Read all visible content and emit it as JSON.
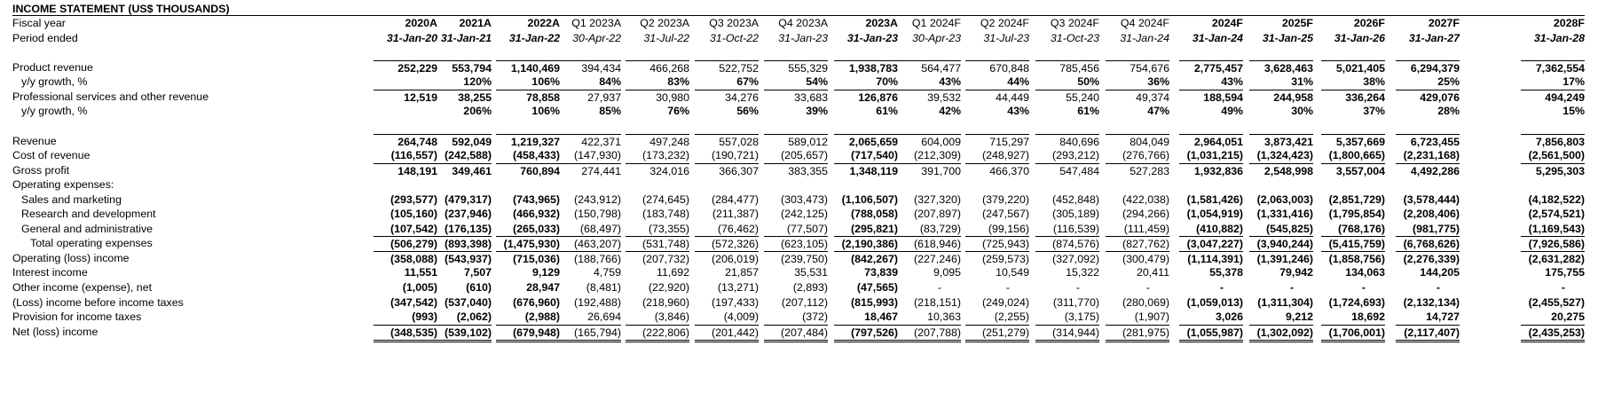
{
  "title": "INCOME STATEMENT (US$ THOUSANDS)",
  "columns": [
    {
      "year": "2020A",
      "period": "31-Jan-20",
      "annual": true
    },
    {
      "year": "2021A",
      "period": "31-Jan-21",
      "annual": true
    },
    {
      "year": "2022A",
      "period": "31-Jan-22",
      "annual": true
    },
    {
      "year": "Q1 2023A",
      "period": "30-Apr-22",
      "annual": false
    },
    {
      "year": "Q2 2023A",
      "period": "31-Jul-22",
      "annual": false
    },
    {
      "year": "Q3 2023A",
      "period": "31-Oct-22",
      "annual": false
    },
    {
      "year": "Q4 2023A",
      "period": "31-Jan-23",
      "annual": false
    },
    {
      "year": "2023A",
      "period": "31-Jan-23",
      "annual": true
    },
    {
      "year": "Q1 2024F",
      "period": "30-Apr-23",
      "annual": false
    },
    {
      "year": "Q2 2024F",
      "period": "31-Jul-23",
      "annual": false
    },
    {
      "year": "Q3 2024F",
      "period": "31-Oct-23",
      "annual": false
    },
    {
      "year": "Q4 2024F",
      "period": "31-Jan-24",
      "annual": false
    },
    {
      "year": "2024F",
      "period": "31-Jan-24",
      "annual": true
    },
    {
      "year": "2025F",
      "period": "31-Jan-25",
      "annual": true
    },
    {
      "year": "2026F",
      "period": "31-Jan-26",
      "annual": true
    },
    {
      "year": "2027F",
      "period": "31-Jan-27",
      "annual": true
    },
    {
      "year": "2028F",
      "period": "31-Jan-28",
      "annual": true
    }
  ],
  "header_rows": [
    {
      "label": "Fiscal year",
      "key": "year"
    },
    {
      "label": "Period ended",
      "key": "period"
    }
  ],
  "rows": [
    {
      "label": "Product revenue",
      "style": "normal",
      "indent": 0,
      "values": [
        "252,229",
        "553,794",
        "1,140,469",
        "394,434",
        "466,268",
        "522,752",
        "555,329",
        "1,938,783",
        "564,477",
        "670,848",
        "785,456",
        "754,676",
        "2,775,457",
        "3,628,463",
        "5,021,405",
        "6,294,379",
        "7,362,554"
      ]
    },
    {
      "label": "y/y growth, %",
      "style": "growth",
      "indent": 1,
      "values": [
        "",
        "120%",
        "106%",
        "84%",
        "83%",
        "67%",
        "54%",
        "70%",
        "43%",
        "44%",
        "50%",
        "36%",
        "43%",
        "31%",
        "38%",
        "25%",
        "17%"
      ]
    },
    {
      "label": "Professional services and other revenue",
      "style": "normal",
      "indent": 0,
      "values": [
        "12,519",
        "38,255",
        "78,858",
        "27,937",
        "30,980",
        "34,276",
        "33,683",
        "126,876",
        "39,532",
        "44,449",
        "55,240",
        "49,374",
        "188,594",
        "244,958",
        "336,264",
        "429,076",
        "494,249"
      ]
    },
    {
      "label": "y/y growth, %",
      "style": "growth",
      "indent": 1,
      "values": [
        "",
        "206%",
        "106%",
        "85%",
        "76%",
        "56%",
        "39%",
        "61%",
        "42%",
        "43%",
        "61%",
        "47%",
        "49%",
        "30%",
        "37%",
        "28%",
        "15%"
      ]
    },
    {
      "label": "Revenue",
      "style": "normal",
      "indent": 0,
      "values": [
        "264,748",
        "592,049",
        "1,219,327",
        "422,371",
        "497,248",
        "557,028",
        "589,012",
        "2,065,659",
        "604,009",
        "715,297",
        "840,696",
        "804,049",
        "2,964,051",
        "3,873,421",
        "5,357,669",
        "6,723,455",
        "7,856,803"
      ]
    },
    {
      "label": "Cost of revenue",
      "style": "normal",
      "indent": 0,
      "values": [
        "(116,557)",
        "(242,588)",
        "(458,433)",
        "(147,930)",
        "(173,232)",
        "(190,721)",
        "(205,657)",
        "(717,540)",
        "(212,309)",
        "(248,927)",
        "(293,212)",
        "(276,766)",
        "(1,031,215)",
        "(1,324,423)",
        "(1,800,665)",
        "(2,231,168)",
        "(2,561,500)"
      ]
    },
    {
      "label": "Gross profit",
      "style": "normal",
      "indent": 0,
      "values": [
        "148,191",
        "349,461",
        "760,894",
        "274,441",
        "324,016",
        "366,307",
        "383,355",
        "1,348,119",
        "391,700",
        "466,370",
        "547,484",
        "527,283",
        "1,932,836",
        "2,548,998",
        "3,557,004",
        "4,492,286",
        "5,295,303"
      ]
    },
    {
      "label": "Operating expenses:",
      "style": "label",
      "indent": 0,
      "values": []
    },
    {
      "label": "Sales and marketing",
      "style": "normal",
      "indent": 1,
      "values": [
        "(293,577)",
        "(479,317)",
        "(743,965)",
        "(243,912)",
        "(274,645)",
        "(284,477)",
        "(303,473)",
        "(1,106,507)",
        "(327,320)",
        "(379,220)",
        "(452,848)",
        "(422,038)",
        "(1,581,426)",
        "(2,063,003)",
        "(2,851,729)",
        "(3,578,444)",
        "(4,182,522)"
      ]
    },
    {
      "label": "Research and development",
      "style": "normal",
      "indent": 1,
      "values": [
        "(105,160)",
        "(237,946)",
        "(466,932)",
        "(150,798)",
        "(183,748)",
        "(211,387)",
        "(242,125)",
        "(788,058)",
        "(207,897)",
        "(247,567)",
        "(305,189)",
        "(294,266)",
        "(1,054,919)",
        "(1,331,416)",
        "(1,795,854)",
        "(2,208,406)",
        "(2,574,521)"
      ]
    },
    {
      "label": "General and administrative",
      "style": "normal",
      "indent": 1,
      "values": [
        "(107,542)",
        "(176,135)",
        "(265,033)",
        "(68,497)",
        "(73,355)",
        "(76,462)",
        "(77,507)",
        "(295,821)",
        "(83,729)",
        "(99,156)",
        "(116,539)",
        "(111,459)",
        "(410,882)",
        "(545,825)",
        "(768,176)",
        "(981,775)",
        "(1,169,543)"
      ]
    },
    {
      "label": "Total operating expenses",
      "style": "normal",
      "indent": 2,
      "values": [
        "(506,279)",
        "(893,398)",
        "(1,475,930)",
        "(463,207)",
        "(531,748)",
        "(572,326)",
        "(623,105)",
        "(2,190,386)",
        "(618,946)",
        "(725,943)",
        "(874,576)",
        "(827,762)",
        "(3,047,227)",
        "(3,940,244)",
        "(5,415,759)",
        "(6,768,626)",
        "(7,926,586)"
      ]
    },
    {
      "label": "Operating (loss) income",
      "style": "normal",
      "indent": 0,
      "values": [
        "(358,088)",
        "(543,937)",
        "(715,036)",
        "(188,766)",
        "(207,732)",
        "(206,019)",
        "(239,750)",
        "(842,267)",
        "(227,246)",
        "(259,573)",
        "(327,092)",
        "(300,479)",
        "(1,114,391)",
        "(1,391,246)",
        "(1,858,756)",
        "(2,276,339)",
        "(2,631,282)"
      ]
    },
    {
      "label": "Interest income",
      "style": "normal",
      "indent": 0,
      "values": [
        "11,551",
        "7,507",
        "9,129",
        "4,759",
        "11,692",
        "21,857",
        "35,531",
        "73,839",
        "9,095",
        "10,549",
        "15,322",
        "20,411",
        "55,378",
        "79,942",
        "134,063",
        "144,205",
        "175,755"
      ]
    },
    {
      "label": "Other income (expense), net",
      "style": "normal",
      "indent": 0,
      "values": [
        "(1,005)",
        "(610)",
        "28,947",
        "(8,481)",
        "(22,920)",
        "(13,271)",
        "(2,893)",
        "(47,565)",
        "-",
        "-",
        "-",
        "-",
        "-",
        "-",
        "-",
        "-",
        "-"
      ]
    },
    {
      "label": "(Loss) income before income taxes",
      "style": "normal",
      "indent": 0,
      "values": [
        "(347,542)",
        "(537,040)",
        "(676,960)",
        "(192,488)",
        "(218,960)",
        "(197,433)",
        "(207,112)",
        "(815,993)",
        "(218,151)",
        "(249,024)",
        "(311,770)",
        "(280,069)",
        "(1,059,013)",
        "(1,311,304)",
        "(1,724,693)",
        "(2,132,134)",
        "(2,455,527)"
      ]
    },
    {
      "label": "Provision for income taxes",
      "style": "normal",
      "indent": 0,
      "values": [
        "(993)",
        "(2,062)",
        "(2,988)",
        "26,694",
        "(3,846)",
        "(4,009)",
        "(372)",
        "18,467",
        "10,363",
        "(2,255)",
        "(3,175)",
        "(1,907)",
        "3,026",
        "9,212",
        "18,692",
        "14,727",
        "20,275"
      ]
    },
    {
      "label": "Net (loss) income",
      "style": "normal",
      "indent": 0,
      "values": [
        "(348,535)",
        "(539,102)",
        "(679,948)",
        "(165,794)",
        "(222,806)",
        "(201,442)",
        "(207,484)",
        "(797,526)",
        "(207,788)",
        "(251,279)",
        "(314,944)",
        "(281,975)",
        "(1,055,987)",
        "(1,302,092)",
        "(1,706,001)",
        "(2,117,407)",
        "(2,435,253)"
      ]
    }
  ]
}
